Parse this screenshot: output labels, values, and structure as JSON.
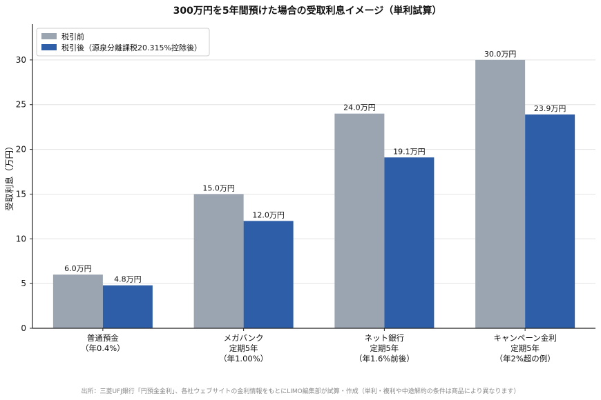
{
  "chart_data": {
    "type": "bar",
    "title": "300万円を5年間預けた場合の受取利息イメージ（単利試算）",
    "ylabel": "受取利息（万円）",
    "xlabel": "",
    "ylim": [
      0,
      34
    ],
    "yticks": [
      0,
      5,
      10,
      15,
      20,
      25,
      30
    ],
    "grid": true,
    "legend_position": "top-left",
    "categories": [
      [
        "普通預金",
        "（年0.4%）"
      ],
      [
        "メガバンク",
        "定期5年",
        "（年1.00%）"
      ],
      [
        "ネット銀行",
        "定期5年",
        "（年1.6%前後）"
      ],
      [
        "キャンペーン金利",
        "定期5年",
        "（年2%超の例）"
      ]
    ],
    "series": [
      {
        "name": "税引前",
        "color": "#9aa5b1",
        "values": [
          6.0,
          15.0,
          24.0,
          30.0
        ],
        "labels": [
          "6.0万円",
          "15.0万円",
          "24.0万円",
          "30.0万円"
        ]
      },
      {
        "name": "税引後（源泉分離課税20.315%控除後）",
        "color": "#2e5ea8",
        "values": [
          4.8,
          12.0,
          19.1,
          23.9
        ],
        "labels": [
          "4.8万円",
          "12.0万円",
          "19.1万円",
          "23.9万円"
        ]
      }
    ],
    "source": "出所：三菱UFJ銀行「円預金金利」、各社ウェブサイトの金利情報をもとにLIMO編集部が試算・作成（単利・複利や中途解約の条件は商品により異なります）"
  }
}
